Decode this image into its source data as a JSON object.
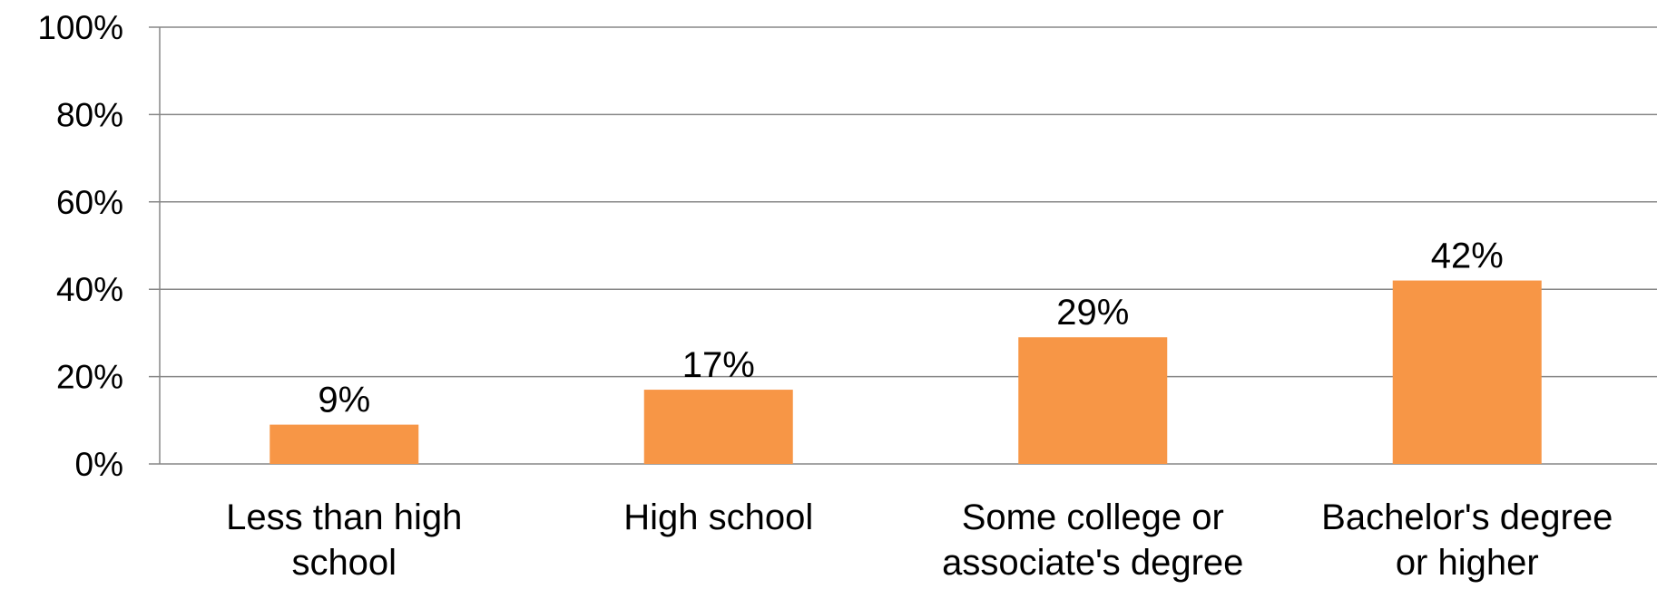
{
  "chart_data": {
    "type": "bar",
    "categories": [
      [
        "Less than high",
        "school"
      ],
      [
        "High school"
      ],
      [
        "Some college or",
        "associate's degree"
      ],
      [
        "Bachelor's degree",
        "or higher"
      ]
    ],
    "values": [
      9,
      17,
      29,
      42
    ],
    "value_labels": [
      "9%",
      "17%",
      "29%",
      "42%"
    ],
    "title": "",
    "xlabel": "",
    "ylabel": "",
    "ylim": [
      0,
      100
    ],
    "yticks": [
      0,
      20,
      40,
      60,
      80,
      100
    ],
    "ytick_labels": [
      "0%",
      "20%",
      "40%",
      "60%",
      "80%",
      "100%"
    ],
    "grid": true,
    "legend": false,
    "bar_color": "#F79646",
    "grid_color": "#878787"
  }
}
